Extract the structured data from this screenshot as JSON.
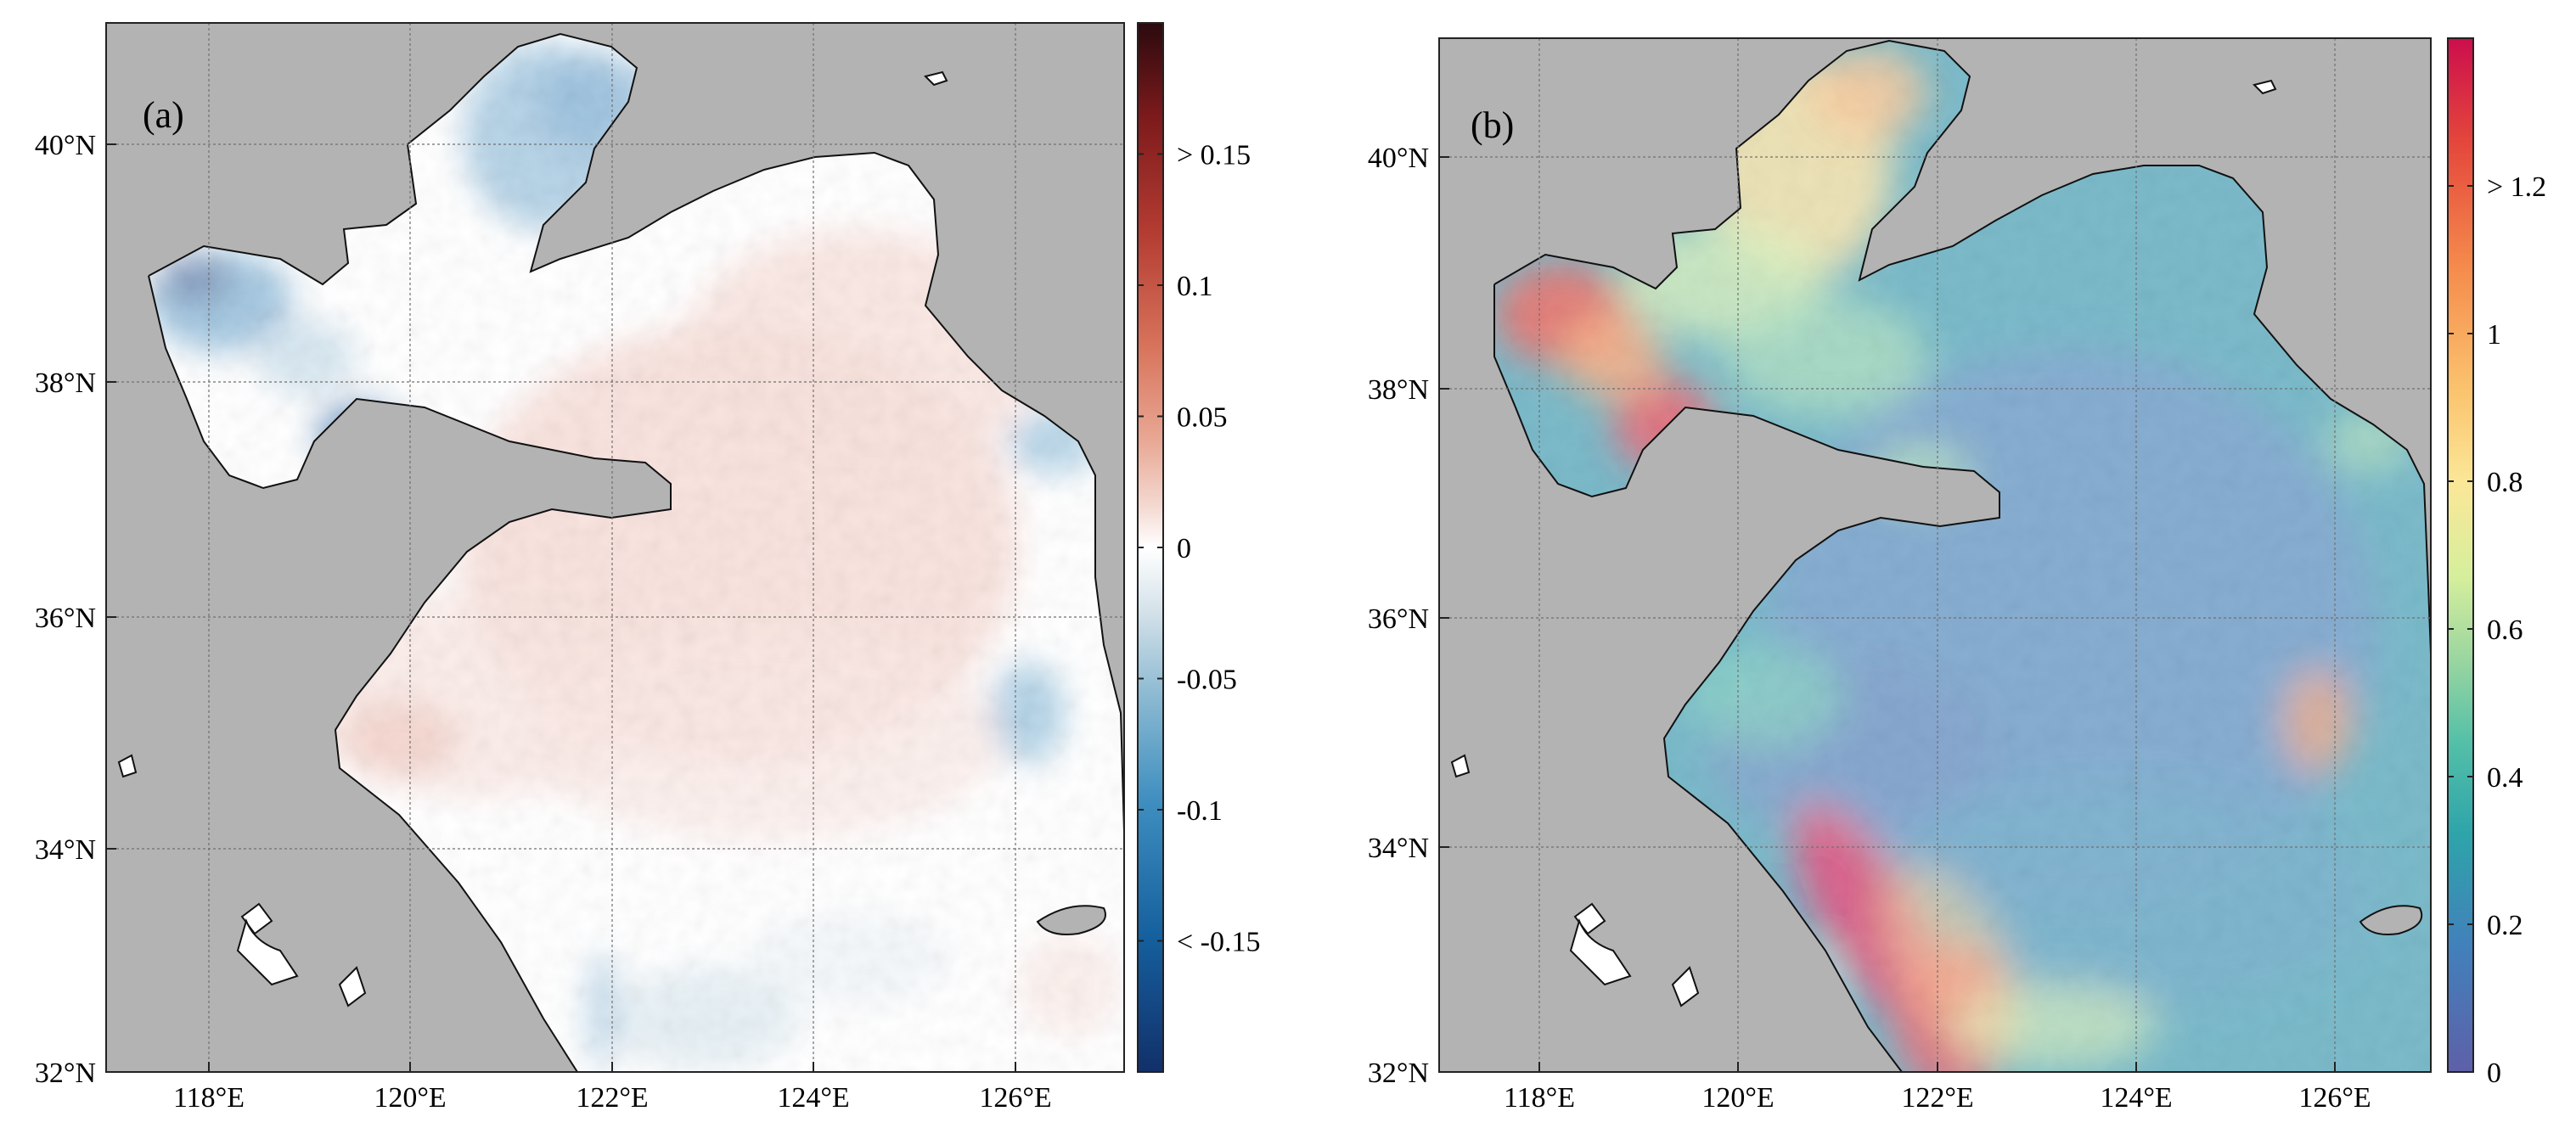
{
  "colors": {
    "land": "#b3b3b3",
    "coast": "#111111",
    "grid": "#707070",
    "diverging": [
      "#2b0a0e",
      "#7d1a1c",
      "#b43c32",
      "#d8745c",
      "#e9a996",
      "#f4d8d0",
      "#ffffff",
      "#d5e2ea",
      "#8dbad2",
      "#3f8fc0",
      "#15609e",
      "#12306a"
    ],
    "spectral": [
      "#cc0e4d",
      "#e4463c",
      "#f58a4c",
      "#fbc36e",
      "#fbe798",
      "#d6ef9c",
      "#9bd6a0",
      "#55c0a8",
      "#2ea4aa",
      "#4280bb",
      "#5e60a8"
    ]
  },
  "chart_data": [
    {
      "type": "heatmap",
      "panel_label": "(a)",
      "x_ticks": [
        "118°E",
        "120°E",
        "122°E",
        "124°E",
        "126°E"
      ],
      "y_ticks": [
        "32°N",
        "34°N",
        "36°N",
        "38°N",
        "40°N"
      ],
      "xlim": [
        117.1,
        127.0
      ],
      "ylim": [
        32.0,
        41.0
      ],
      "colorbar": {
        "range": [
          -0.2,
          0.2
        ],
        "tick_values": [
          0.15,
          0.1,
          0.05,
          0,
          -0.05,
          -0.1,
          -0.15
        ],
        "tick_labels": [
          "> 0.15",
          "0.1",
          "0.05",
          "0",
          "-0.05",
          "-0.1",
          "< -0.15"
        ],
        "colormap": "diverging"
      },
      "field_description": "negative anomalies in Bohai Bay and Laizhou Bay; weak positive anomalies across central Yellow Sea"
    },
    {
      "type": "heatmap",
      "panel_label": "(b)",
      "x_ticks": [
        "118°E",
        "120°E",
        "122°E",
        "124°E",
        "126°E"
      ],
      "y_ticks": [
        "32°N",
        "34°N",
        "36°N",
        "38°N",
        "40°N"
      ],
      "xlim": [
        117.1,
        127.0
      ],
      "ylim": [
        32.0,
        41.0
      ],
      "colorbar": {
        "range": [
          0,
          1.4
        ],
        "tick_values": [
          1.2,
          1,
          0.8,
          0.6,
          0.4,
          0.2,
          0
        ],
        "tick_labels": [
          "> 1.2",
          "1",
          "0.8",
          "0.6",
          "0.4",
          "0.2",
          "0"
        ],
        "colormap": "spectral"
      },
      "field_description": "high values along Bohai coasts and Jiangsu coast; low values in central Yellow Sea"
    }
  ]
}
